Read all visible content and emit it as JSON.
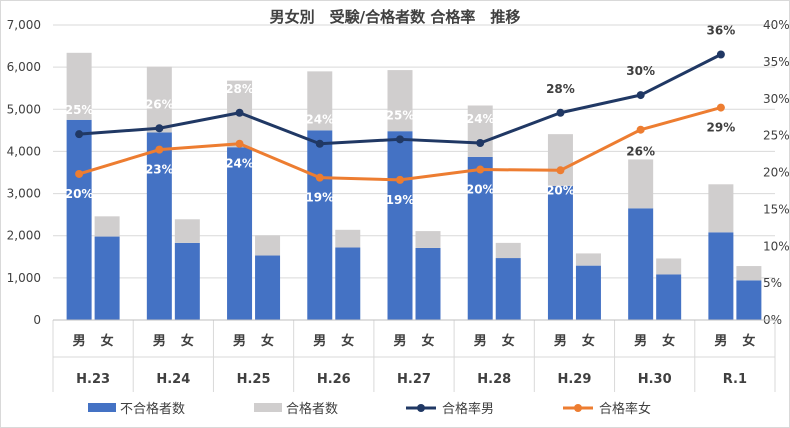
{
  "chart_data": {
    "type": "bar",
    "title": "男女別　受験/合格者数 合格率　推移",
    "categories": [
      "H.23",
      "H.24",
      "H.25",
      "H.26",
      "H.27",
      "H.28",
      "H.29",
      "H.30",
      "R.1"
    ],
    "sub_categories": [
      "男",
      "女"
    ],
    "ylim": [
      0,
      7000
    ],
    "y2lim": [
      0,
      0.4
    ],
    "y_ticks": [
      "0",
      "1,000",
      "2,000",
      "3,000",
      "4,000",
      "5,000",
      "6,000",
      "7,000"
    ],
    "y2_ticks": [
      "0%",
      "5%",
      "10%",
      "15%",
      "20%",
      "25%",
      "30%",
      "35%",
      "40%"
    ],
    "series": [
      {
        "name": "不合格者数",
        "stack": "count",
        "color": "#4472c4",
        "male": [
          4750,
          4450,
          4100,
          4500,
          4480,
          3870,
          3180,
          2650,
          2080
        ],
        "female": [
          1980,
          1830,
          1530,
          1720,
          1710,
          1470,
          1290,
          1080,
          940
        ]
      },
      {
        "name": "合格者数",
        "stack": "count",
        "color": "#d0cece",
        "male": [
          1590,
          1560,
          1580,
          1400,
          1450,
          1220,
          1230,
          1160,
          1140
        ],
        "female": [
          480,
          560,
          480,
          420,
          400,
          360,
          290,
          380,
          340
        ]
      },
      {
        "name": "合格率男",
        "axis": "right",
        "color": "#203864",
        "values": [
          0.252,
          0.26,
          0.281,
          0.239,
          0.245,
          0.24,
          0.281,
          0.305,
          0.36
        ],
        "labels": [
          "25%",
          "26%",
          "28%",
          "24%",
          "25%",
          "24%",
          "28%",
          "30%",
          "36%"
        ]
      },
      {
        "name": "合格率女",
        "axis": "right",
        "color": "#ed7d31",
        "values": [
          0.198,
          0.231,
          0.239,
          0.193,
          0.19,
          0.204,
          0.203,
          0.258,
          0.288
        ],
        "labels": [
          "20%",
          "23%",
          "24%",
          "19%",
          "19%",
          "20%",
          "20%",
          "26%",
          "29%"
        ]
      }
    ],
    "legend": "bottom",
    "grid": true
  }
}
